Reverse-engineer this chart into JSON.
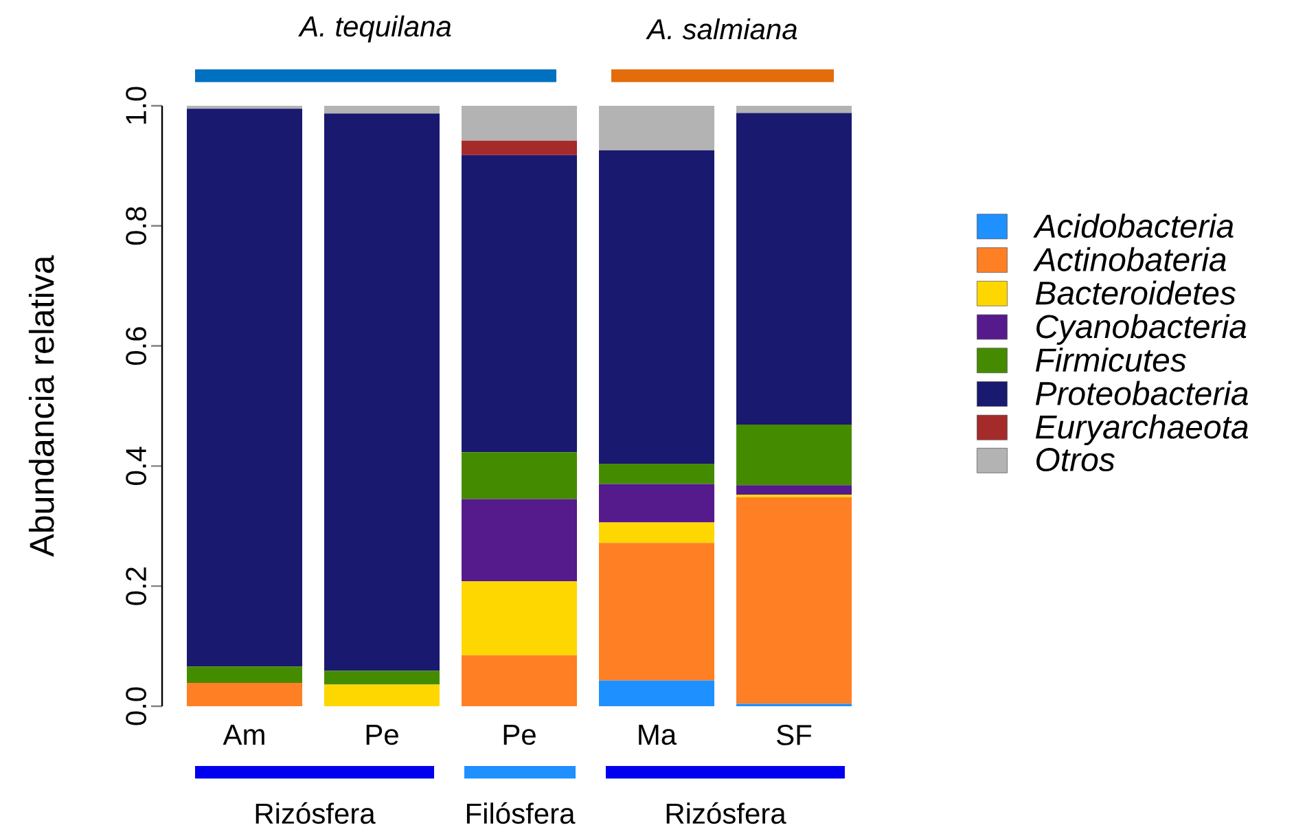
{
  "chart_data": {
    "type": "bar",
    "stacked": true,
    "ylabel": "Abundancia relativa",
    "categories": [
      "Am",
      "Pe",
      "Pe",
      "Ma",
      "SF"
    ],
    "ylim": [
      0,
      1
    ],
    "yticks": [
      {
        "value": 0,
        "label": "0.0"
      },
      {
        "value": 0.2,
        "label": "0.2"
      },
      {
        "value": 0.4,
        "label": "0.4"
      },
      {
        "value": 0.6,
        "label": "0.6"
      },
      {
        "value": 0.8,
        "label": "0.8"
      },
      {
        "value": 1,
        "label": "1.0"
      }
    ],
    "legend": "right",
    "grid": false,
    "annotations": [
      "A. tequilana",
      "A. salmiana",
      "Rizósfera",
      "Filósfera",
      "Rizósfera"
    ],
    "series": [
      {
        "name": "Acidobacteria",
        "color": "#1e90ff",
        "values": [
          0,
          0,
          0,
          0.043,
          0.004
        ]
      },
      {
        "name": "Actinobateria",
        "color": "#ff7f24",
        "values": [
          0.039,
          0,
          0.085,
          0.229,
          0.344
        ]
      },
      {
        "name": "Bacteroidetes",
        "color": "#ffd700",
        "values": [
          0,
          0.036,
          0.123,
          0.034,
          0.004
        ]
      },
      {
        "name": "Cyanobacteria",
        "color": "#551a8b",
        "values": [
          0,
          0,
          0.137,
          0.064,
          0.016
        ]
      },
      {
        "name": "Firmicutes",
        "color": "#458b00",
        "values": [
          0.027,
          0.023,
          0.078,
          0.034,
          0.101
        ]
      },
      {
        "name": "Proteobacteria",
        "color": "#191970",
        "values": [
          0.929,
          0.928,
          0.495,
          0.522,
          0.519
        ]
      },
      {
        "name": "Euryarchaeota",
        "color": "#a52a2a",
        "values": [
          0,
          0,
          0.024,
          0,
          0
        ]
      },
      {
        "name": "Otros",
        "color": "#b3b3b3",
        "values": [
          0.005,
          0.013,
          0.058,
          0.074,
          0.012
        ]
      }
    ]
  }
}
